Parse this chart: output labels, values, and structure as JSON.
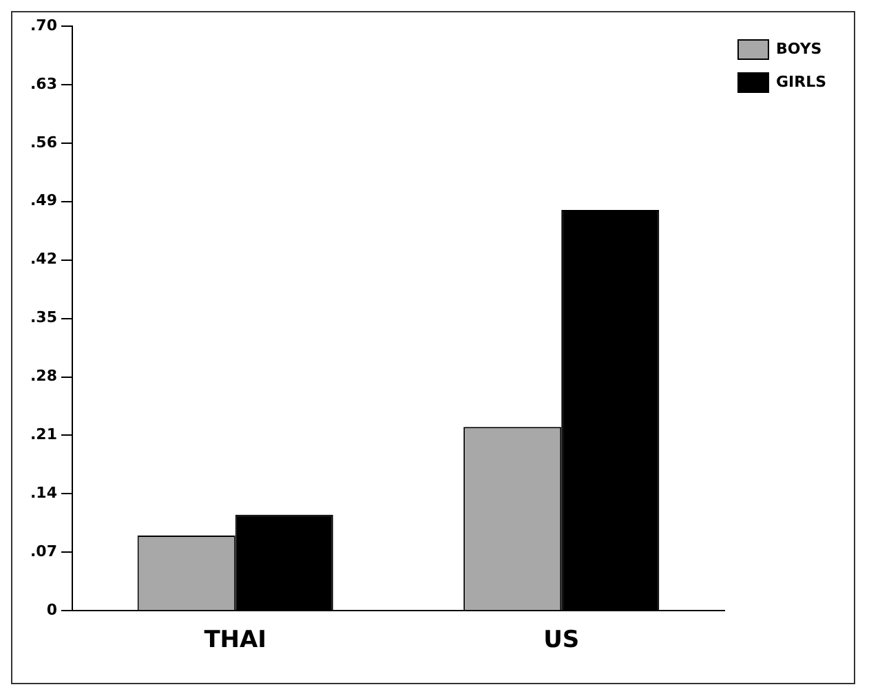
{
  "chart_data": {
    "type": "bar",
    "categories": [
      "THAI",
      "US"
    ],
    "series": [
      {
        "name": "BOYS",
        "color": "#a8a8a8",
        "values": [
          0.09,
          0.22
        ]
      },
      {
        "name": "GIRLS",
        "color": "#000000",
        "values": [
          0.115,
          0.48
        ]
      }
    ],
    "ylim": [
      0,
      0.7
    ],
    "yticks": [
      0,
      {
        "value": 0.07,
        "label": ".07"
      },
      {
        "value": 0.14,
        "label": ".14"
      },
      {
        "value": 0.21,
        "label": ".21"
      },
      {
        "value": 0.28,
        "label": ".28"
      },
      {
        "value": 0.35,
        "label": ".35"
      },
      {
        "value": 0.42,
        "label": ".42"
      },
      {
        "value": 0.49,
        "label": ".49"
      },
      {
        "value": 0.56,
        "label": ".56"
      },
      {
        "value": 0.63,
        "label": ".63"
      },
      {
        "value": 0.7,
        "label": ".70"
      }
    ],
    "grid": false,
    "legend": "top right"
  }
}
